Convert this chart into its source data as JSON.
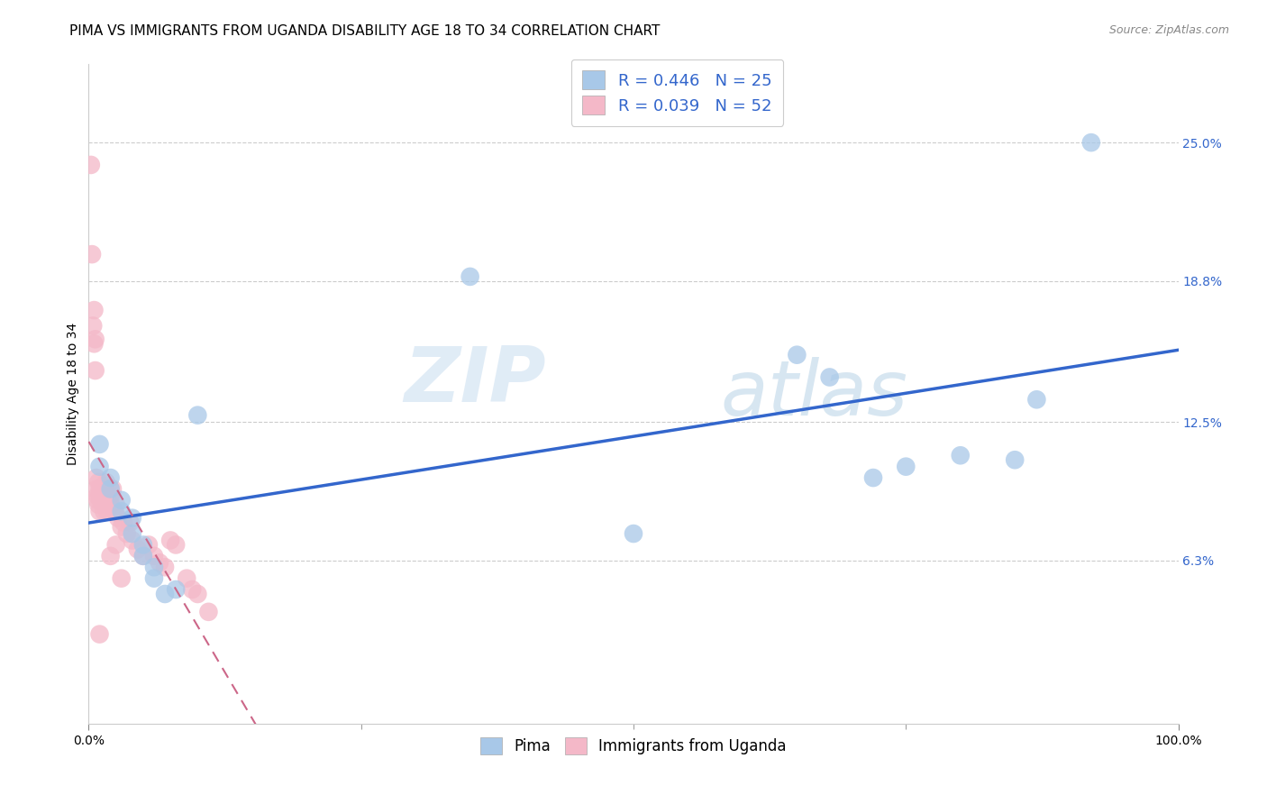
{
  "title": "PIMA VS IMMIGRANTS FROM UGANDA DISABILITY AGE 18 TO 34 CORRELATION CHART",
  "source": "Source: ZipAtlas.com",
  "ylabel_label": "Disability Age 18 to 34",
  "legend_bottom": [
    "Pima",
    "Immigrants from Uganda"
  ],
  "pima_R": "R = 0.446",
  "pima_N": "N = 25",
  "uganda_R": "R = 0.039",
  "uganda_N": "N = 52",
  "blue_color": "#a8c8e8",
  "pink_color": "#f4b8c8",
  "blue_line_color": "#3366cc",
  "pink_line_color": "#cc6688",
  "pima_x": [
    0.01,
    0.01,
    0.02,
    0.02,
    0.03,
    0.03,
    0.04,
    0.04,
    0.05,
    0.05,
    0.06,
    0.06,
    0.07,
    0.08,
    0.1,
    0.35,
    0.5,
    0.65,
    0.68,
    0.72,
    0.75,
    0.8,
    0.85,
    0.87,
    0.92
  ],
  "pima_y": [
    0.115,
    0.105,
    0.1,
    0.095,
    0.09,
    0.085,
    0.082,
    0.075,
    0.07,
    0.065,
    0.06,
    0.055,
    0.048,
    0.05,
    0.128,
    0.19,
    0.075,
    0.155,
    0.145,
    0.1,
    0.105,
    0.11,
    0.108,
    0.135,
    0.25
  ],
  "uganda_x": [
    0.002,
    0.003,
    0.004,
    0.005,
    0.005,
    0.006,
    0.006,
    0.007,
    0.007,
    0.008,
    0.008,
    0.009,
    0.009,
    0.01,
    0.01,
    0.01,
    0.011,
    0.012,
    0.013,
    0.014,
    0.015,
    0.016,
    0.017,
    0.018,
    0.02,
    0.022,
    0.024,
    0.025,
    0.027,
    0.03,
    0.032,
    0.035,
    0.038,
    0.04,
    0.045,
    0.05,
    0.055,
    0.06,
    0.065,
    0.07,
    0.075,
    0.08,
    0.09,
    0.095,
    0.1,
    0.11,
    0.02,
    0.02,
    0.02,
    0.025,
    0.03,
    0.01
  ],
  "uganda_y": [
    0.24,
    0.2,
    0.168,
    0.175,
    0.16,
    0.162,
    0.148,
    0.095,
    0.1,
    0.09,
    0.092,
    0.098,
    0.088,
    0.095,
    0.092,
    0.085,
    0.09,
    0.095,
    0.09,
    0.085,
    0.095,
    0.098,
    0.085,
    0.09,
    0.092,
    0.095,
    0.085,
    0.088,
    0.082,
    0.078,
    0.08,
    0.075,
    0.08,
    0.072,
    0.068,
    0.065,
    0.07,
    0.065,
    0.062,
    0.06,
    0.072,
    0.07,
    0.055,
    0.05,
    0.048,
    0.04,
    0.095,
    0.088,
    0.065,
    0.07,
    0.055,
    0.03
  ],
  "xlim": [
    0.0,
    1.0
  ],
  "ylim": [
    -0.01,
    0.285
  ],
  "yticks": [
    0.063,
    0.125,
    0.188,
    0.25
  ],
  "ytick_labels": [
    "6.3%",
    "12.5%",
    "18.8%",
    "25.0%"
  ],
  "xtick_labels": [
    "0.0%",
    "100.0%"
  ],
  "xticks": [
    0.0,
    1.0
  ],
  "xtick_minor": [
    0.25,
    0.5,
    0.75
  ],
  "grid_color": "#cccccc",
  "background_color": "#ffffff",
  "watermark_zip": "ZIP",
  "watermark_atlas": "atlas",
  "title_fontsize": 11,
  "label_fontsize": 10,
  "right_label_color": "#3366cc",
  "legend_text_color": "#3366cc"
}
